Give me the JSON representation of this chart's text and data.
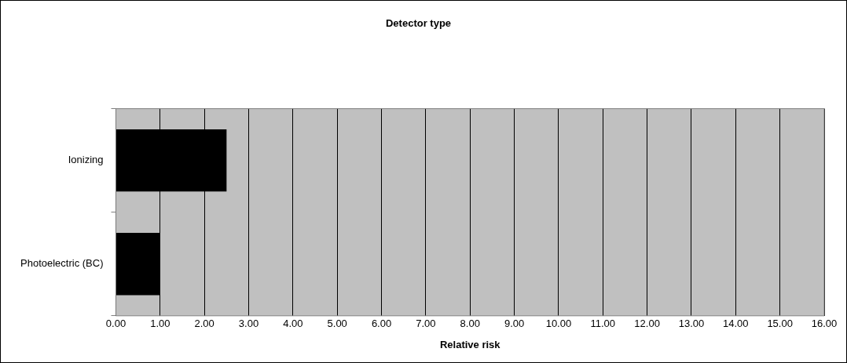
{
  "chart_data": {
    "type": "bar",
    "orientation": "horizontal",
    "title": "Detector type",
    "xlabel": "Relative risk",
    "categories": [
      "Ionizing",
      "Photoelectric (BC)"
    ],
    "values": [
      2.5,
      1.0
    ],
    "color": "#000000",
    "xlim": [
      0,
      16
    ],
    "xticks": [
      {
        "value": 0,
        "label": "0.00"
      },
      {
        "value": 1,
        "label": "1.00"
      },
      {
        "value": 2,
        "label": "2.00"
      },
      {
        "value": 3,
        "label": "3.00"
      },
      {
        "value": 4,
        "label": "4.00"
      },
      {
        "value": 5,
        "label": "5.00"
      },
      {
        "value": 6,
        "label": "6.00"
      },
      {
        "value": 7,
        "label": "7.00"
      },
      {
        "value": 8,
        "label": "8.00"
      },
      {
        "value": 9,
        "label": "9.00"
      },
      {
        "value": 10,
        "label": "10.00"
      },
      {
        "value": 11,
        "label": "11.00"
      },
      {
        "value": 12,
        "label": "12.00"
      },
      {
        "value": 13,
        "label": "13.00"
      },
      {
        "value": 14,
        "label": "14.00"
      },
      {
        "value": 15,
        "label": "15.00"
      },
      {
        "value": 16,
        "label": "16.00"
      }
    ],
    "grid": "x",
    "legend": false
  }
}
